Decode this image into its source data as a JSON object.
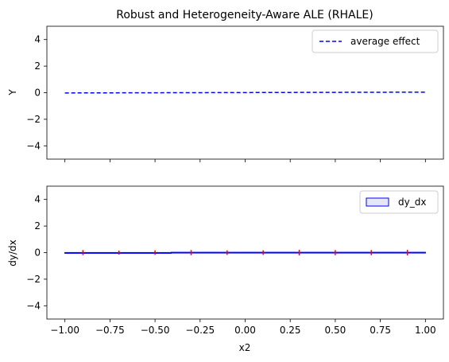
{
  "chart_data": [
    {
      "type": "line",
      "title": "Robust and Heterogeneity-Aware ALE (RHALE)",
      "xlabel": "",
      "ylabel": "Y",
      "xlim": [
        -1.1,
        1.1
      ],
      "ylim": [
        -5,
        5
      ],
      "xticks": [
        -1.0,
        -0.75,
        -0.5,
        -0.25,
        0.0,
        0.25,
        0.5,
        0.75,
        1.0
      ],
      "xtick_labels_visible": false,
      "yticks": [
        -4,
        -2,
        0,
        2,
        4
      ],
      "ytick_labels": [
        "−4",
        "−2",
        "0",
        "2",
        "4"
      ],
      "legend": "top-right",
      "series": [
        {
          "name": "average effect",
          "color": "#0000ff",
          "style": "dashed",
          "x": [
            -1.0,
            1.0
          ],
          "y": [
            -0.02,
            0.04
          ]
        }
      ]
    },
    {
      "type": "bar",
      "title": "",
      "xlabel": "x2",
      "ylabel": "dy/dx",
      "xlim": [
        -1.1,
        1.1
      ],
      "ylim": [
        -5,
        5
      ],
      "xticks": [
        -1.0,
        -0.75,
        -0.5,
        -0.25,
        0.0,
        0.25,
        0.5,
        0.75,
        1.0
      ],
      "xtick_labels": [
        "−1.00",
        "−0.75",
        "−0.50",
        "−0.25",
        "0.00",
        "0.25",
        "0.50",
        "0.75",
        "1.00"
      ],
      "yticks": [
        -4,
        -2,
        0,
        2,
        4
      ],
      "ytick_labels": [
        "−4",
        "−2",
        "0",
        "2",
        "4"
      ],
      "legend": "top-right",
      "series": [
        {
          "name": "dy_dx",
          "color": "#0000ff",
          "fill": "#e6e6f8",
          "bins": [
            {
              "x0": -1.0,
              "x1": -0.41,
              "value": -0.02
            },
            {
              "x0": -0.41,
              "x1": 1.0,
              "value": 0.02
            }
          ]
        }
      ],
      "error_markers": {
        "color": "#ff0000",
        "x": [
          -0.9,
          -0.7,
          -0.5,
          -0.3,
          -0.1,
          0.1,
          0.3,
          0.5,
          0.7,
          0.9
        ],
        "y": [
          0.0,
          0.0,
          0.0,
          0.0,
          0.0,
          0.0,
          0.0,
          0.0,
          0.0,
          0.0
        ],
        "halfwidth": [
          0.12,
          0.08,
          0.1,
          0.12,
          0.1,
          0.1,
          0.14,
          0.12,
          0.12,
          0.14
        ]
      }
    }
  ]
}
